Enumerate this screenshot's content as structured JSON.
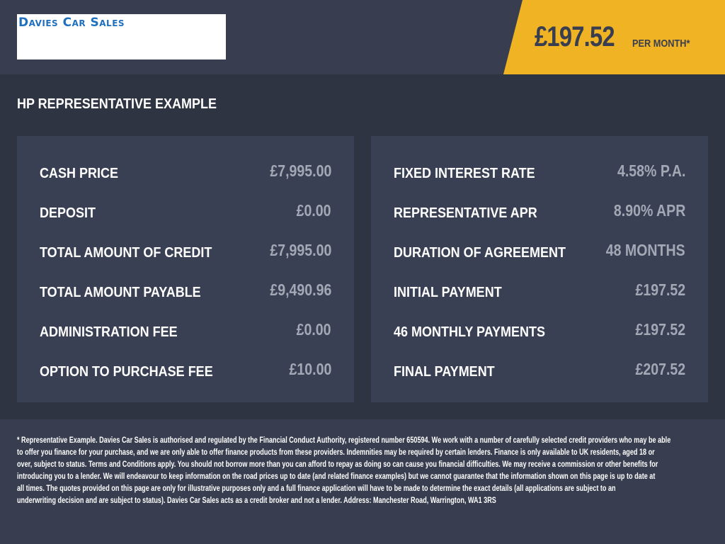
{
  "header": {
    "logo_text": "Davies Car Sales",
    "monthly_price": "£197.52",
    "per_month_label": "PER MONTH*",
    "accent_color": "#f0b323"
  },
  "section_title": "HP REPRESENTATIVE EXAMPLE",
  "left_panel": [
    {
      "label": "CASH PRICE",
      "value": "£7,995.00"
    },
    {
      "label": "DEPOSIT",
      "value": "£0.00"
    },
    {
      "label": "TOTAL AMOUNT OF CREDIT",
      "value": "£7,995.00"
    },
    {
      "label": "TOTAL AMOUNT PAYABLE",
      "value": "£9,490.96"
    },
    {
      "label": "ADMINISTRATION FEE",
      "value": "£0.00"
    },
    {
      "label": "OPTION TO PURCHASE FEE",
      "value": "£10.00"
    }
  ],
  "right_panel": [
    {
      "label": "FIXED INTEREST RATE",
      "value": "4.58% P.A."
    },
    {
      "label": "REPRESENTATIVE APR",
      "value": "8.90% APR"
    },
    {
      "label": "DURATION OF AGREEMENT",
      "value": "48 MONTHS"
    },
    {
      "label": "INITIAL PAYMENT",
      "value": "£197.52"
    },
    {
      "label": "46 MONTHLY PAYMENTS",
      "value": "£197.52"
    },
    {
      "label": "FINAL PAYMENT",
      "value": "£207.52"
    }
  ],
  "footer_lines": [
    "* Representative Example. Davies Car Sales  is authorised and regulated by the Financial Conduct Authority, registered number 650594. We work with a number of carefully selected credit providers who may be able",
    "to offer you finance for your purchase, and we are only able to offer finance products from these providers. Indemnities may be required by certain lenders. Finance is only available to UK residents, aged 18 or",
    "over, subject to status. Terms and Conditions apply. You should not borrow more than you can afford to repay as doing so can cause you financial difficulties. We may receive a commission or other benefits for",
    "introducing you to a lender. We will endeavour to keep information on the road prices up to date (and related finance examples) but we cannot guarantee that the information shown on this page is up to date at",
    "all times. The quotes provided on this page are only for illustrative purposes only and a full finance application will have to be made to determine the exact details (all applications are subject to an",
    "underwriting decision and are subject to status). Davies Car Sales  acts as a credit broker and not a lender. Address: Manchester Road, Warrington, WA1 3RS"
  ]
}
